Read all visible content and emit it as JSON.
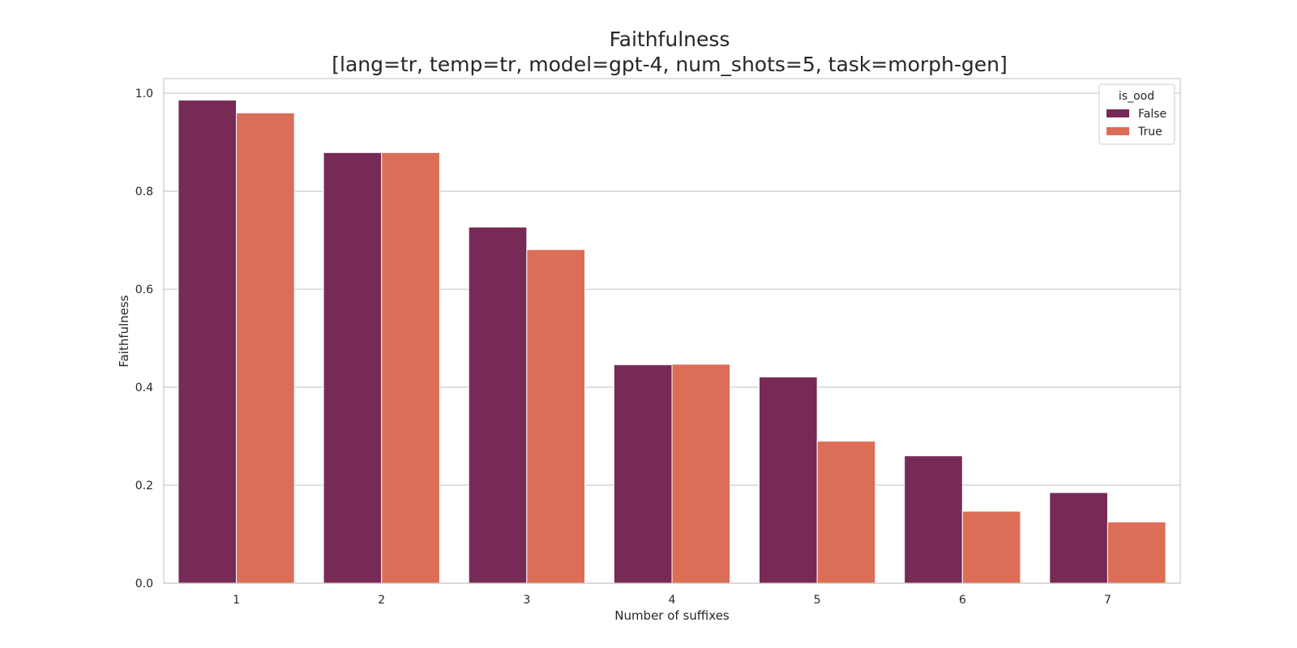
{
  "chart_data": {
    "type": "bar",
    "title": "Faithfulness",
    "subtitle": "[lang=tr, temp=tr, model=gpt-4, num_shots=5, task=morph-gen]",
    "xlabel": "Number of suffixes",
    "ylabel": "Faithfulness",
    "categories": [
      "1",
      "2",
      "3",
      "4",
      "5",
      "6",
      "7"
    ],
    "ylim": [
      0,
      1.03
    ],
    "yticks": [
      "0.0",
      "0.2",
      "0.4",
      "0.6",
      "0.8",
      "1.0"
    ],
    "grid": true,
    "legend": {
      "title": "is_ood",
      "placement": "top-right"
    },
    "series": [
      {
        "name": "False",
        "color": "#772a56",
        "values": [
          0.986,
          0.879,
          0.727,
          0.446,
          0.421,
          0.26,
          0.185
        ]
      },
      {
        "name": "True",
        "color": "#dc6e57",
        "values": [
          0.96,
          0.879,
          0.681,
          0.447,
          0.29,
          0.147,
          0.125
        ]
      }
    ]
  }
}
